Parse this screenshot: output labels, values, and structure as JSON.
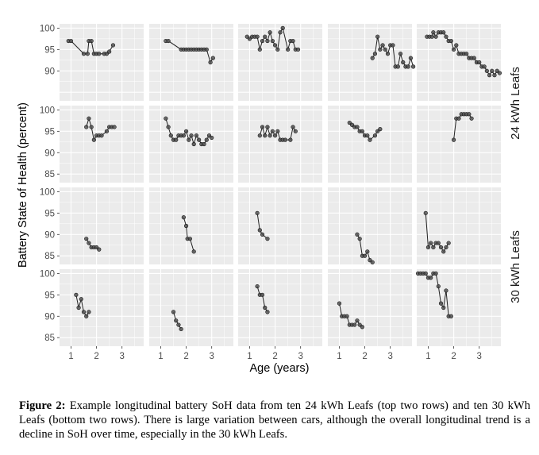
{
  "chart_data": {
    "type": "line",
    "layout": "faceted grid, 4 rows x 5 columns",
    "xlabel": "Age (years)",
    "ylabel": "Battery State of Health (percent)",
    "xlim": [
      0.55,
      3.85
    ],
    "xticks": [
      1,
      2,
      3
    ],
    "ylim_rows": [
      [
        83,
        101
      ],
      [
        83,
        101
      ],
      [
        83,
        101
      ],
      [
        83,
        101
      ]
    ],
    "yticks_rows": [
      [
        90,
        95,
        100
      ],
      [
        85,
        90,
        95,
        100
      ],
      [
        85,
        90,
        95,
        100
      ],
      [
        85,
        90,
        95,
        100
      ]
    ],
    "grid": true,
    "row_strips": [
      {
        "label": "24 kWh Leafs",
        "rows": [
          0,
          1
        ]
      },
      {
        "label": "30 kWh Leafs",
        "rows": [
          2,
          3
        ]
      }
    ],
    "panels": [
      {
        "row": 0,
        "col": 0,
        "points": [
          [
            0.9,
            97
          ],
          [
            1.0,
            97
          ],
          [
            1.5,
            94
          ],
          [
            1.65,
            94
          ],
          [
            1.7,
            97
          ],
          [
            1.8,
            97
          ],
          [
            1.9,
            94
          ],
          [
            2.0,
            94
          ],
          [
            2.1,
            94
          ],
          [
            2.3,
            94
          ],
          [
            2.4,
            94
          ],
          [
            2.5,
            94.5
          ],
          [
            2.65,
            96
          ]
        ]
      },
      {
        "row": 0,
        "col": 1,
        "points": [
          [
            1.2,
            97
          ],
          [
            1.3,
            97
          ],
          [
            1.8,
            95
          ],
          [
            1.9,
            95
          ],
          [
            2.0,
            95
          ],
          [
            2.1,
            95
          ],
          [
            2.2,
            95
          ],
          [
            2.3,
            95
          ],
          [
            2.4,
            95
          ],
          [
            2.5,
            95
          ],
          [
            2.6,
            95
          ],
          [
            2.7,
            95
          ],
          [
            2.8,
            95
          ],
          [
            2.95,
            92
          ],
          [
            3.05,
            93
          ]
        ]
      },
      {
        "row": 0,
        "col": 2,
        "points": [
          [
            0.9,
            98
          ],
          [
            1.0,
            97.5
          ],
          [
            1.1,
            98
          ],
          [
            1.2,
            98
          ],
          [
            1.3,
            98
          ],
          [
            1.4,
            95
          ],
          [
            1.5,
            97
          ],
          [
            1.6,
            98
          ],
          [
            1.7,
            97
          ],
          [
            1.8,
            99
          ],
          [
            1.9,
            97
          ],
          [
            2.0,
            96
          ],
          [
            2.1,
            95
          ],
          [
            2.2,
            99
          ],
          [
            2.3,
            100
          ],
          [
            2.5,
            95
          ],
          [
            2.6,
            97
          ],
          [
            2.7,
            97
          ],
          [
            2.8,
            95
          ],
          [
            2.9,
            95
          ]
        ]
      },
      {
        "row": 0,
        "col": 3,
        "points": [
          [
            2.3,
            93
          ],
          [
            2.4,
            94
          ],
          [
            2.5,
            98
          ],
          [
            2.6,
            95
          ],
          [
            2.7,
            96
          ],
          [
            2.8,
            95
          ],
          [
            2.9,
            94
          ],
          [
            3.0,
            96
          ],
          [
            3.1,
            96
          ],
          [
            3.2,
            91
          ],
          [
            3.3,
            91
          ],
          [
            3.4,
            94
          ],
          [
            3.5,
            92
          ],
          [
            3.6,
            91
          ],
          [
            3.7,
            91
          ],
          [
            3.8,
            93
          ],
          [
            3.9,
            91
          ]
        ]
      },
      {
        "row": 0,
        "col": 4,
        "points": [
          [
            0.95,
            98
          ],
          [
            1.05,
            98
          ],
          [
            1.15,
            98
          ],
          [
            1.2,
            99
          ],
          [
            1.3,
            98
          ],
          [
            1.4,
            99
          ],
          [
            1.5,
            99
          ],
          [
            1.6,
            99
          ],
          [
            1.7,
            98
          ],
          [
            1.8,
            97
          ],
          [
            1.9,
            97
          ],
          [
            2.0,
            95
          ],
          [
            2.1,
            96
          ],
          [
            2.2,
            94
          ],
          [
            2.3,
            94
          ],
          [
            2.4,
            94
          ],
          [
            2.5,
            94
          ],
          [
            2.6,
            93
          ],
          [
            2.7,
            93
          ],
          [
            2.8,
            93
          ],
          [
            2.9,
            92
          ],
          [
            3.0,
            92
          ],
          [
            3.1,
            91
          ],
          [
            3.2,
            91
          ],
          [
            3.3,
            90
          ],
          [
            3.4,
            89
          ],
          [
            3.5,
            90
          ],
          [
            3.6,
            89
          ],
          [
            3.7,
            90
          ],
          [
            3.8,
            89.5
          ]
        ]
      },
      {
        "row": 1,
        "col": 0,
        "points": [
          [
            1.6,
            96
          ],
          [
            1.7,
            98
          ],
          [
            1.8,
            96
          ],
          [
            1.9,
            93
          ],
          [
            2.0,
            94
          ],
          [
            2.1,
            94
          ],
          [
            2.2,
            94
          ],
          [
            2.4,
            95
          ],
          [
            2.5,
            96
          ],
          [
            2.6,
            96
          ],
          [
            2.7,
            96
          ]
        ]
      },
      {
        "row": 1,
        "col": 1,
        "points": [
          [
            1.2,
            98
          ],
          [
            1.3,
            96
          ],
          [
            1.4,
            94
          ],
          [
            1.5,
            93
          ],
          [
            1.6,
            93
          ],
          [
            1.7,
            94
          ],
          [
            1.8,
            94
          ],
          [
            1.9,
            94
          ],
          [
            2.0,
            95
          ],
          [
            2.1,
            93
          ],
          [
            2.2,
            94
          ],
          [
            2.3,
            92
          ],
          [
            2.4,
            94
          ],
          [
            2.5,
            93
          ],
          [
            2.6,
            92
          ],
          [
            2.7,
            92
          ],
          [
            2.8,
            93
          ],
          [
            2.9,
            94
          ],
          [
            3.0,
            93.5
          ]
        ]
      },
      {
        "row": 1,
        "col": 2,
        "points": [
          [
            1.4,
            94
          ],
          [
            1.5,
            96
          ],
          [
            1.6,
            94
          ],
          [
            1.7,
            96
          ],
          [
            1.8,
            94
          ],
          [
            1.9,
            95
          ],
          [
            2.0,
            94
          ],
          [
            2.1,
            95
          ],
          [
            2.2,
            93
          ],
          [
            2.3,
            93
          ],
          [
            2.4,
            93
          ],
          [
            2.6,
            93
          ],
          [
            2.7,
            96
          ],
          [
            2.8,
            95
          ]
        ]
      },
      {
        "row": 1,
        "col": 3,
        "points": [
          [
            1.4,
            97
          ],
          [
            1.5,
            96.5
          ],
          [
            1.6,
            96
          ],
          [
            1.7,
            96
          ],
          [
            1.8,
            95
          ],
          [
            1.9,
            95
          ],
          [
            2.0,
            94
          ],
          [
            2.1,
            94
          ],
          [
            2.2,
            93
          ],
          [
            2.4,
            94
          ],
          [
            2.5,
            95
          ],
          [
            2.6,
            95.5
          ]
        ]
      },
      {
        "row": 1,
        "col": 4,
        "points": [
          [
            2.0,
            93
          ],
          [
            2.1,
            98
          ],
          [
            2.2,
            98
          ],
          [
            2.3,
            99
          ],
          [
            2.4,
            99
          ],
          [
            2.5,
            99
          ],
          [
            2.6,
            99
          ],
          [
            2.7,
            98
          ]
        ]
      },
      {
        "row": 2,
        "col": 0,
        "points": [
          [
            1.6,
            89
          ],
          [
            1.7,
            88
          ],
          [
            1.8,
            87
          ],
          [
            1.9,
            87
          ],
          [
            2.0,
            87
          ],
          [
            2.1,
            86.5
          ]
        ]
      },
      {
        "row": 2,
        "col": 1,
        "points": [
          [
            1.9,
            94
          ],
          [
            2.0,
            92
          ],
          [
            2.05,
            89
          ],
          [
            2.15,
            89
          ],
          [
            2.3,
            86
          ]
        ]
      },
      {
        "row": 2,
        "col": 2,
        "points": [
          [
            1.3,
            95
          ],
          [
            1.4,
            91
          ],
          [
            1.5,
            90
          ],
          [
            1.7,
            89
          ]
        ]
      },
      {
        "row": 2,
        "col": 3,
        "points": [
          [
            1.7,
            90
          ],
          [
            1.8,
            89
          ],
          [
            1.9,
            85
          ],
          [
            2.0,
            85
          ],
          [
            2.1,
            86
          ],
          [
            2.2,
            84
          ],
          [
            2.3,
            83.5
          ]
        ]
      },
      {
        "row": 2,
        "col": 4,
        "points": [
          [
            0.9,
            95
          ],
          [
            1.0,
            87
          ],
          [
            1.1,
            88
          ],
          [
            1.2,
            87
          ],
          [
            1.3,
            88
          ],
          [
            1.4,
            88
          ],
          [
            1.5,
            87
          ],
          [
            1.6,
            86
          ],
          [
            1.7,
            87
          ],
          [
            1.8,
            88
          ]
        ]
      },
      {
        "row": 3,
        "col": 0,
        "points": [
          [
            1.2,
            95
          ],
          [
            1.3,
            92
          ],
          [
            1.4,
            94
          ],
          [
            1.5,
            91
          ],
          [
            1.6,
            90
          ],
          [
            1.7,
            91
          ]
        ]
      },
      {
        "row": 3,
        "col": 1,
        "points": [
          [
            1.5,
            91
          ],
          [
            1.6,
            89
          ],
          [
            1.7,
            88
          ],
          [
            1.8,
            87
          ]
        ]
      },
      {
        "row": 3,
        "col": 2,
        "points": [
          [
            1.3,
            97
          ],
          [
            1.4,
            95
          ],
          [
            1.5,
            95
          ],
          [
            1.6,
            92
          ],
          [
            1.7,
            91
          ]
        ]
      },
      {
        "row": 3,
        "col": 3,
        "points": [
          [
            1.0,
            93
          ],
          [
            1.1,
            90
          ],
          [
            1.2,
            90
          ],
          [
            1.3,
            90
          ],
          [
            1.4,
            88
          ],
          [
            1.5,
            88
          ],
          [
            1.6,
            88
          ],
          [
            1.7,
            89
          ],
          [
            1.8,
            88
          ],
          [
            1.9,
            87.5
          ]
        ]
      },
      {
        "row": 3,
        "col": 4,
        "points": [
          [
            0.6,
            100
          ],
          [
            0.7,
            100
          ],
          [
            0.8,
            100
          ],
          [
            0.9,
            100
          ],
          [
            1.0,
            99
          ],
          [
            1.1,
            99
          ],
          [
            1.2,
            100
          ],
          [
            1.3,
            100
          ],
          [
            1.4,
            97
          ],
          [
            1.5,
            93
          ],
          [
            1.6,
            92
          ],
          [
            1.7,
            96
          ],
          [
            1.8,
            90
          ],
          [
            1.9,
            90
          ]
        ]
      }
    ]
  },
  "caption": {
    "label": "Figure 2:",
    "text": "Example longitudinal battery SoH data from ten 24 kWh Leafs (top two rows) and ten 30 kWh Leafs (bottom two rows).  There is large variation between cars, although the overall longitudinal trend is a decline in SoH over time, especially in the 30 kWh Leafs."
  }
}
